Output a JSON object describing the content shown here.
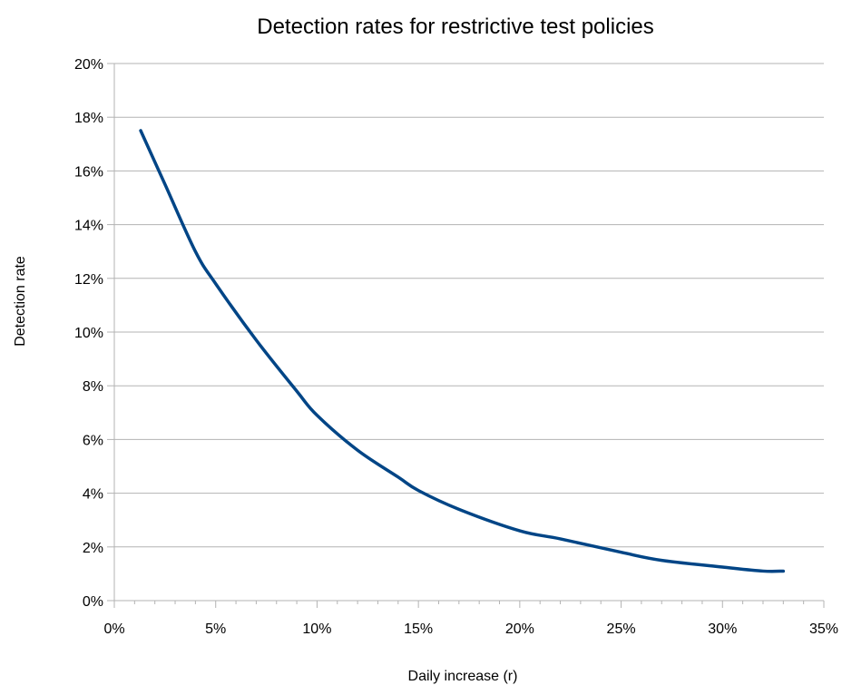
{
  "chart_data": {
    "type": "line",
    "title": "Detection rates for restrictive test policies",
    "xlabel": "Daily increase (r)",
    "ylabel": "Detection rate",
    "xlim": [
      0,
      0.35
    ],
    "ylim": [
      0,
      0.2
    ],
    "x_ticks": [
      0,
      0.05,
      0.1,
      0.15,
      0.2,
      0.25,
      0.3,
      0.35
    ],
    "x_tick_labels": [
      "0%",
      "5%",
      "10%",
      "15%",
      "20%",
      "25%",
      "30%",
      "35%"
    ],
    "y_ticks": [
      0,
      0.02,
      0.04,
      0.06,
      0.08,
      0.1,
      0.12,
      0.14,
      0.16,
      0.18,
      0.2
    ],
    "y_tick_labels": [
      "0%",
      "2%",
      "4%",
      "6%",
      "8%",
      "10%",
      "12%",
      "14%",
      "16%",
      "18%",
      "20%"
    ],
    "grid": true,
    "legend": "none",
    "series": [
      {
        "color": "#004586",
        "x": [
          0.013,
          0.025,
          0.04,
          0.05,
          0.07,
          0.09,
          0.1,
          0.12,
          0.14,
          0.15,
          0.17,
          0.2,
          0.22,
          0.25,
          0.27,
          0.3,
          0.32,
          0.33
        ],
        "y": [
          0.175,
          0.155,
          0.13,
          0.118,
          0.097,
          0.078,
          0.069,
          0.056,
          0.046,
          0.041,
          0.034,
          0.026,
          0.023,
          0.018,
          0.015,
          0.0125,
          0.011,
          0.011
        ]
      }
    ]
  }
}
